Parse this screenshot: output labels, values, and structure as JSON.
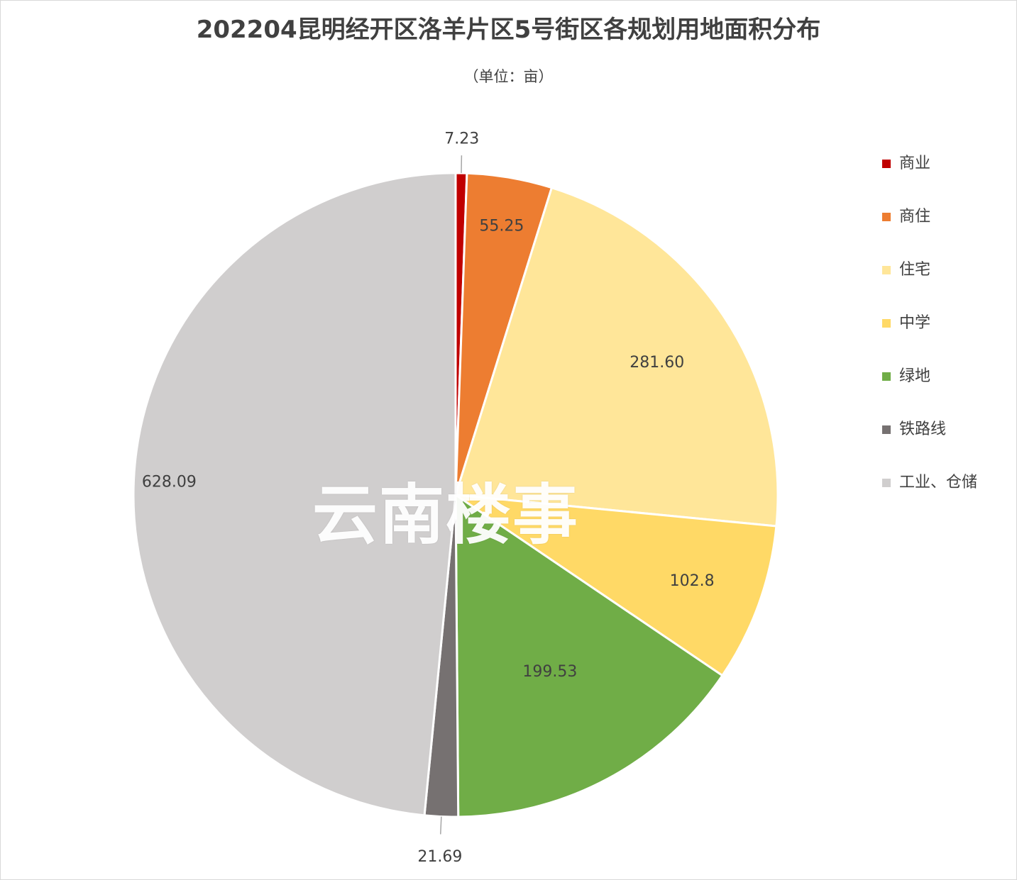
{
  "title": "202204昆明经开区洛羊片区5号街区各规划用地面积分布",
  "subtitle": "（单位：亩）",
  "watermark": "云南楼事",
  "chart_data": {
    "type": "pie",
    "title": "202204昆明经开区洛羊片区5号街区各规划用地面积分布",
    "subtitle": "（单位：亩）",
    "legend_position": "right",
    "slices": [
      {
        "name": "商业",
        "value": 7.23,
        "label": "7.23",
        "color": "#c00000"
      },
      {
        "name": "商住",
        "value": 55.25,
        "label": "55.25",
        "color": "#ed7d31"
      },
      {
        "name": "住宅",
        "value": 281.6,
        "label": "281.60",
        "color": "#ffe699"
      },
      {
        "name": "中学",
        "value": 102.8,
        "label": "102.8",
        "color": "#ffd966"
      },
      {
        "name": "绿地",
        "value": 199.53,
        "label": "199.53",
        "color": "#70ad47"
      },
      {
        "name": "铁路线",
        "value": 21.69,
        "label": "21.69",
        "color": "#767171"
      },
      {
        "name": "工业、仓储",
        "value": 628.09,
        "label": "628.09",
        "color": "#d0cece"
      }
    ]
  }
}
